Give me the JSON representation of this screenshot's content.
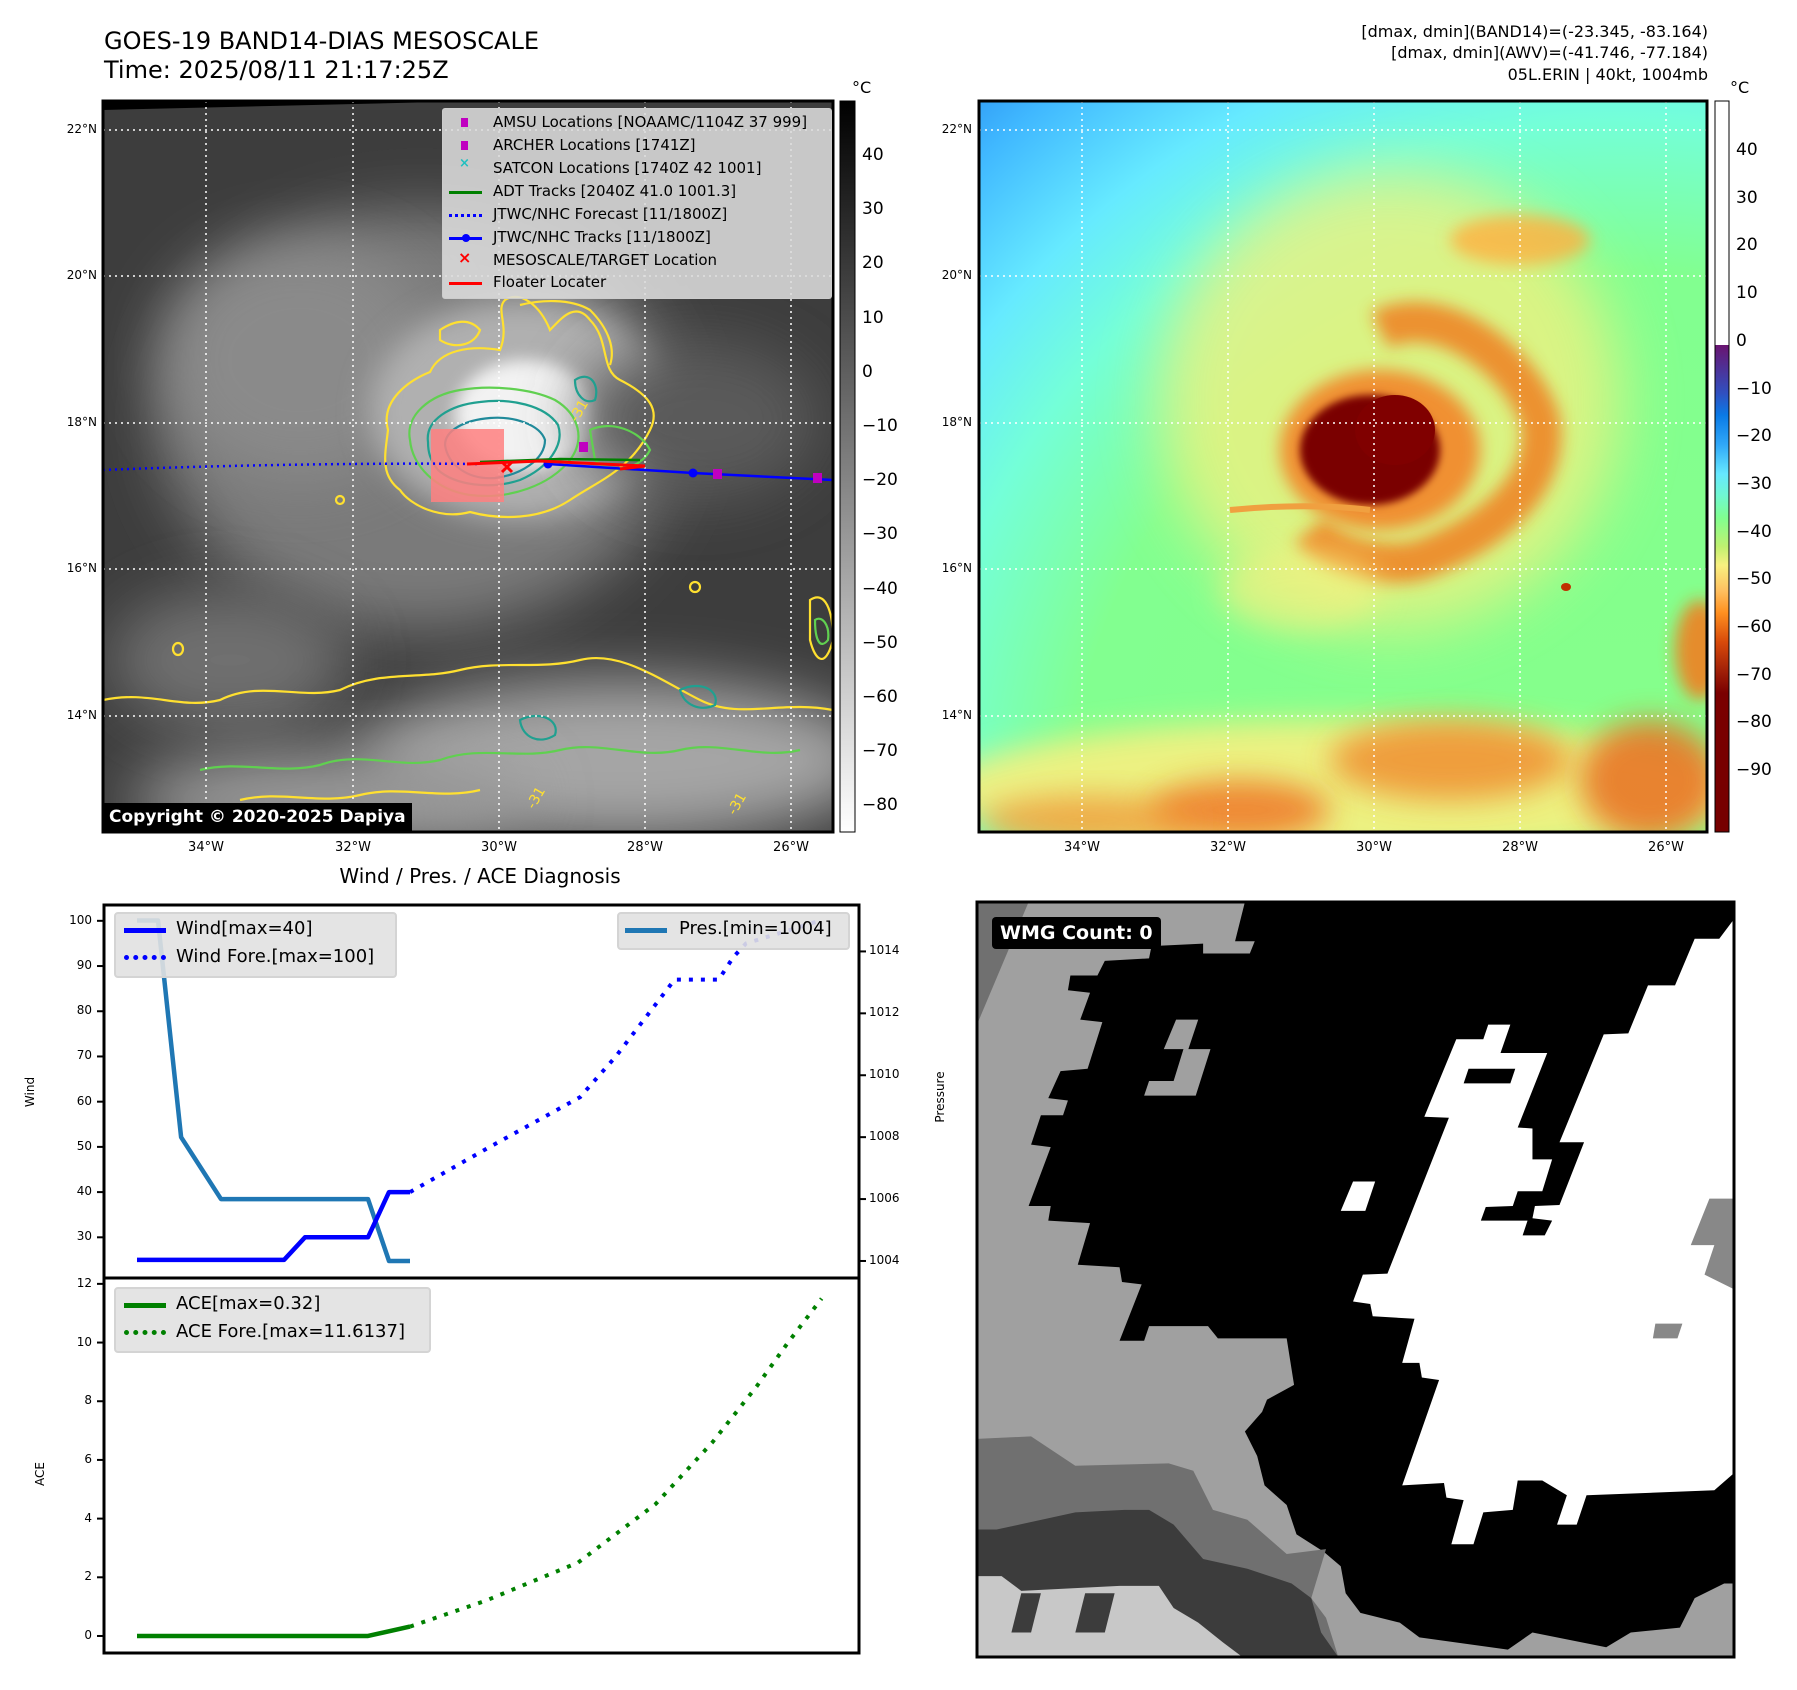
{
  "header": {
    "title_line1": "GOES-19 BAND14-DIAS MESOSCALE",
    "title_line2": "Time: 2025/08/11 21:17:25Z",
    "info_line1": "[dmax, dmin](BAND14)=(-23.345, -83.164)",
    "info_line2": "[dmax, dmin](AWV)=(-41.746, -77.184)",
    "info_line3": "05L.ERIN | 40kt, 1004mb"
  },
  "maps": {
    "lat_labels": [
      "22°N",
      "20°N",
      "18°N",
      "16°N",
      "14°N"
    ],
    "lon_labels": [
      "34°W",
      "32°W",
      "30°W",
      "28°W",
      "26°W"
    ],
    "copyright": "Copyright © 2020-2025 Dapiya",
    "contour_label": "-31",
    "legend": [
      {
        "label": "AMSU Locations [NOAAMC/1104Z 37 999]",
        "color": "#c000c0",
        "marker": "square"
      },
      {
        "label": "ARCHER Locations [1741Z]",
        "color": "#c000c0",
        "marker": "square"
      },
      {
        "label": "SATCON Locations [1740Z 42 1001]",
        "color": "#20c0c0",
        "marker": "x"
      },
      {
        "label": "ADT Tracks [2040Z 41.0 1001.3]",
        "color": "#008000",
        "marker": "line"
      },
      {
        "label": "JTWC/NHC Forecast [11/1800Z]",
        "color": "#0000ff",
        "marker": "dotted"
      },
      {
        "label": "JTWC/NHC Tracks [11/1800Z]",
        "color": "#0000ff",
        "marker": "line-dot"
      },
      {
        "label": "MESOSCALE/TARGET Location",
        "color": "#ff0000",
        "marker": "x"
      },
      {
        "label": "Floater Locater",
        "color": "#ff0000",
        "marker": "line"
      }
    ],
    "colorbar_left": {
      "unit": "°C",
      "ticks": [
        "40",
        "30",
        "20",
        "10",
        "0",
        "−10",
        "−20",
        "−30",
        "−40",
        "−50",
        "−60",
        "−70",
        "−80"
      ]
    },
    "colorbar_right": {
      "unit": "°C",
      "ticks": [
        "40",
        "30",
        "20",
        "10",
        "0",
        "−10",
        "−20",
        "−30",
        "−40",
        "−50",
        "−60",
        "−70",
        "−80",
        "−90"
      ]
    }
  },
  "wmg": {
    "count_label": "WMG Count: 0"
  },
  "chart_data": {
    "type": "line",
    "title": "Wind / Pres. / ACE Diagnosis",
    "panels": [
      {
        "ylabel": "Wind",
        "y2label": "Pressure",
        "ylim": [
          21,
          103.5
        ],
        "y2lim": [
          1003.45,
          1015.5
        ],
        "yticks": [
          30,
          40,
          50,
          60,
          70,
          80,
          90,
          100
        ],
        "y2ticks": [
          1004,
          1006,
          1008,
          1010,
          1012,
          1014
        ],
        "series": [
          {
            "name": "Wind[max=40]",
            "axis": "left",
            "style": "solid",
            "color": "#0000ff",
            "x": [
              0,
              1,
              2,
              3,
              4,
              5,
              6,
              7,
              8,
              9,
              10,
              11,
              12,
              13
            ],
            "values": [
              25,
              25,
              25,
              25,
              25,
              25,
              25,
              25,
              30,
              30,
              30,
              30,
              40,
              40
            ]
          },
          {
            "name": "Wind Fore.[max=100]",
            "axis": "left",
            "style": "dotted",
            "color": "#0000ff",
            "x": [
              13,
              16.8,
              21.1,
              22.8,
              25.6,
              27.7,
              28.4,
              29,
              32.5
            ],
            "values": [
              40,
              50,
              61,
              70,
              87,
              87,
              92,
              95,
              100
            ]
          },
          {
            "name": "Pres.[min=1004]",
            "axis": "right",
            "style": "solid",
            "color": "#1f77b4",
            "x": [
              0,
              1,
              2.1,
              4,
              11,
              12,
              13
            ],
            "values": [
              1015,
              1015,
              1008,
              1006,
              1006,
              1004,
              1004
            ]
          }
        ]
      },
      {
        "ylabel": "ACE",
        "ylim": [
          -0.58,
          12.2
        ],
        "yticks": [
          0,
          2,
          4,
          6,
          8,
          10,
          12
        ],
        "series": [
          {
            "name": "ACE[max=0.32]",
            "style": "solid",
            "color": "#008000",
            "x": [
              0,
              11,
              13
            ],
            "values": [
              0,
              0,
              0.32
            ]
          },
          {
            "name": "ACE Fore.[max=11.6137]",
            "style": "dotted",
            "color": "#008000",
            "x": [
              13,
              16.6,
              21,
              24.7,
              27.4,
              29.5,
              31,
              32.6
            ],
            "values": [
              0.32,
              1.2,
              2.5,
              4.5,
              6.6,
              8.5,
              10,
              11.5
            ]
          }
        ]
      }
    ]
  }
}
